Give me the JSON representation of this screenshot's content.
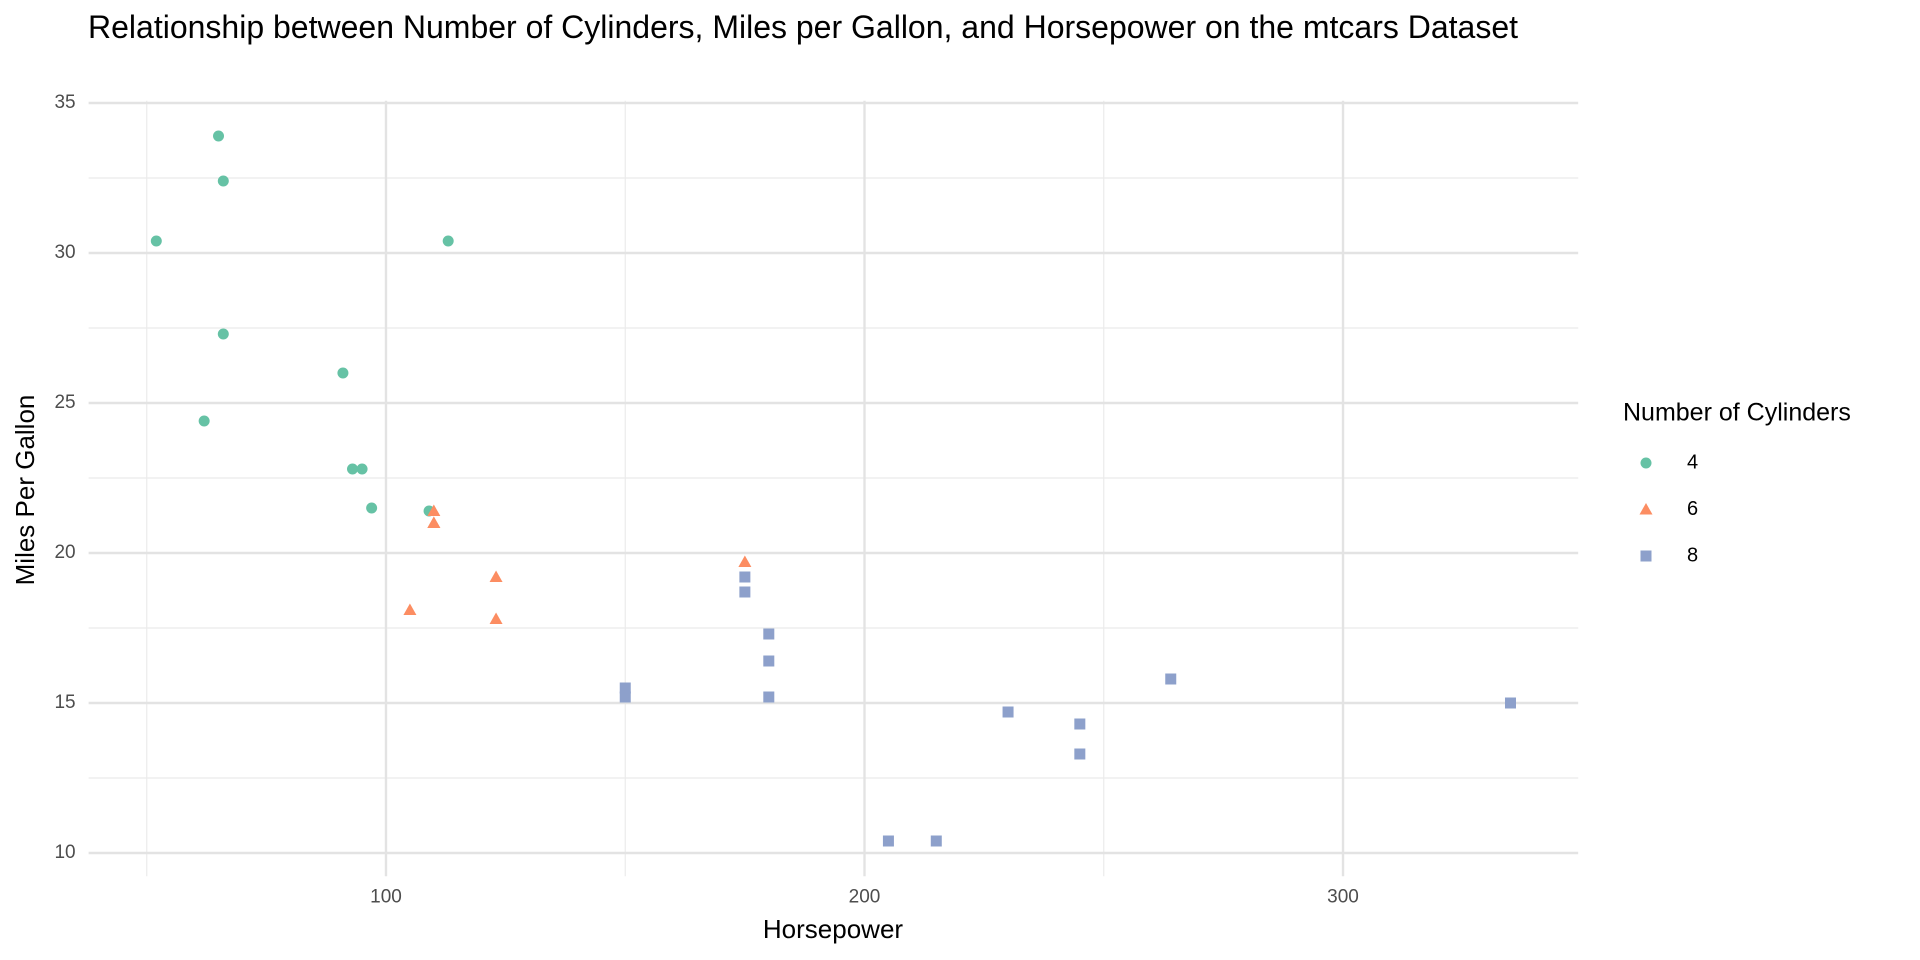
{
  "chart_data": {
    "type": "scatter",
    "title": "Relationship between Number of Cylinders, Miles per Gallon, and Horsepower on the mtcars Dataset",
    "x_label": "Horsepower",
    "y_label": "Miles Per Gallon",
    "legend_title": "Number of Cylinders",
    "legend_position": "right",
    "grid": true,
    "xlim": [
      37.85,
      349.15
    ],
    "ylim": [
      9.225,
      35.075
    ],
    "xticks": [
      100,
      200,
      300
    ],
    "yticks": [
      10,
      15,
      20,
      25,
      30,
      35
    ],
    "xminorticks": [
      50,
      150,
      250
    ],
    "yminorticks": [
      12.5,
      17.5,
      22.5,
      27.5,
      32.5
    ],
    "series": [
      {
        "name": "4",
        "color": "#66c2a5",
        "marker": "circle",
        "x": [
          93,
          62,
          95,
          66,
          52,
          65,
          97,
          66,
          91,
          113,
          109
        ],
        "values": [
          22.8,
          24.4,
          22.8,
          32.4,
          30.4,
          33.9,
          21.5,
          27.3,
          26.0,
          30.4,
          21.4
        ]
      },
      {
        "name": "6",
        "color": "#fc8d62",
        "marker": "triangle",
        "x": [
          110,
          110,
          110,
          105,
          123,
          123,
          175
        ],
        "values": [
          21.0,
          21.0,
          21.4,
          18.1,
          19.2,
          17.8,
          19.7
        ]
      },
      {
        "name": "8",
        "color": "#8da0cb",
        "marker": "square",
        "x": [
          175,
          245,
          180,
          180,
          180,
          205,
          215,
          230,
          150,
          150,
          245,
          175,
          264,
          335
        ],
        "values": [
          18.7,
          14.3,
          16.4,
          17.3,
          15.2,
          10.4,
          10.4,
          14.7,
          15.5,
          15.2,
          13.3,
          19.2,
          15.8,
          15.0
        ]
      }
    ]
  }
}
